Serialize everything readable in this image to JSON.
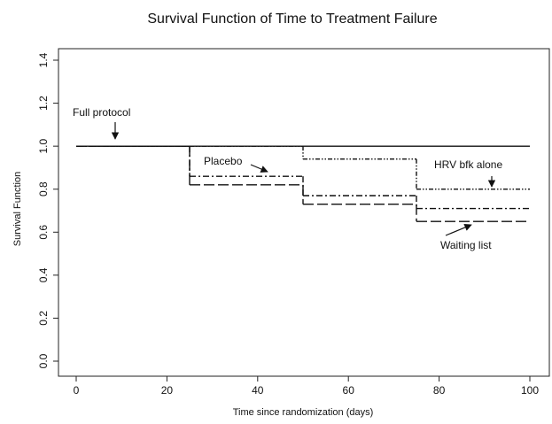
{
  "chart_data": {
    "type": "step",
    "title": "Survival Function of Time to Treatment Failure",
    "x_label": "Time since randomization (days)",
    "y_label": "Survival Function",
    "x": [
      0,
      25,
      50,
      75
    ],
    "xlim": [
      0,
      100
    ],
    "xticks": [
      0,
      20,
      40,
      60,
      80,
      100
    ],
    "ylim": [
      0,
      1.4
    ],
    "yticks": [
      {
        "value": 0,
        "label": "0.0"
      },
      {
        "value": 0.2,
        "label": "0.2"
      },
      {
        "value": 0.4,
        "label": "0.4"
      },
      {
        "value": 0.6,
        "label": "0.6"
      },
      {
        "value": 0.8,
        "label": "0.8"
      },
      {
        "value": 1,
        "label": "1.0"
      },
      {
        "value": 1.2,
        "label": "1.2"
      },
      {
        "value": 1.4,
        "label": "1.4"
      }
    ],
    "series": [
      {
        "name": "Full protocol",
        "color": "#111111",
        "values": [
          1,
          1,
          1,
          1
        ]
      },
      {
        "name": "Placebo",
        "color": "#111111",
        "values": [
          1,
          0.86,
          0.77,
          0.71
        ]
      },
      {
        "name": "HRV bfk alone",
        "color": "#111111",
        "values": [
          1,
          1,
          0.94,
          0.8
        ]
      },
      {
        "name": "Waiting list",
        "color": "#111111",
        "values": [
          1,
          0.82,
          0.73,
          0.65
        ]
      }
    ]
  }
}
